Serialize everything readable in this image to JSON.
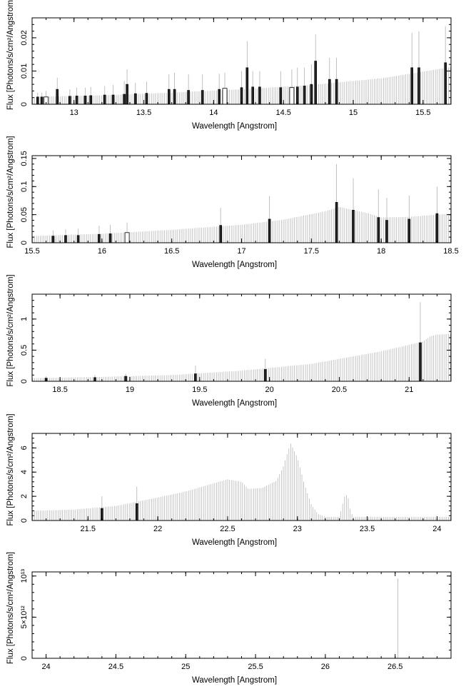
{
  "ylabel": "Flux [Photons/s/cm²/Angstrom]",
  "chart_data": [
    {
      "type": "bar",
      "xlabel": "Wavelength [Angstrom]",
      "ylabel": "Flux [Photons/s/cm²/Angstrom]",
      "xlim": [
        12.7,
        15.7
      ],
      "ylim": [
        0,
        0.026
      ],
      "xticks": [
        13,
        13.5,
        14,
        14.5,
        15,
        15.5
      ],
      "xtick_labels": [
        "13",
        "13.5",
        "14",
        "14.5",
        "15",
        "15.5"
      ],
      "yticks": [
        0,
        0.01,
        0.02
      ],
      "ytick_labels": [
        "0",
        "0.01",
        "0.02"
      ],
      "continuum": {
        "x": [
          12.7,
          13.2,
          13.7,
          14.2,
          14.7,
          15.2,
          15.7
        ],
        "y": [
          0.0022,
          0.0027,
          0.0035,
          0.0045,
          0.0058,
          0.0078,
          0.0112
        ]
      },
      "points": [
        {
          "x": 12.74,
          "y": 0.0022,
          "err": 0.0035,
          "hollow": false
        },
        {
          "x": 12.77,
          "y": 0.0022,
          "err": 0.0035,
          "hollow": false
        },
        {
          "x": 12.8,
          "y": 0.0022,
          "err": 0.004,
          "hollow": true
        },
        {
          "x": 12.88,
          "y": 0.0045,
          "err": 0.008,
          "hollow": false
        },
        {
          "x": 12.97,
          "y": 0.0024,
          "err": 0.0045,
          "hollow": false
        },
        {
          "x": 13.02,
          "y": 0.0025,
          "err": 0.005,
          "hollow": false
        },
        {
          "x": 13.08,
          "y": 0.0025,
          "err": 0.005,
          "hollow": false
        },
        {
          "x": 13.12,
          "y": 0.0026,
          "err": 0.0052,
          "hollow": false
        },
        {
          "x": 13.22,
          "y": 0.0028,
          "err": 0.0055,
          "hollow": false
        },
        {
          "x": 13.28,
          "y": 0.0028,
          "err": 0.0058,
          "hollow": false
        },
        {
          "x": 13.36,
          "y": 0.003,
          "err": 0.007,
          "hollow": false
        },
        {
          "x": 13.38,
          "y": 0.006,
          "err": 0.0105,
          "hollow": false
        },
        {
          "x": 13.44,
          "y": 0.0032,
          "err": 0.0065,
          "hollow": false
        },
        {
          "x": 13.52,
          "y": 0.0033,
          "err": 0.0068,
          "hollow": false
        },
        {
          "x": 13.68,
          "y": 0.0045,
          "err": 0.009,
          "hollow": false
        },
        {
          "x": 13.72,
          "y": 0.0045,
          "err": 0.0095,
          "hollow": false
        },
        {
          "x": 13.82,
          "y": 0.0042,
          "err": 0.009,
          "hollow": false
        },
        {
          "x": 13.92,
          "y": 0.0042,
          "err": 0.009,
          "hollow": false
        },
        {
          "x": 14.04,
          "y": 0.0045,
          "err": 0.0092,
          "hollow": false
        },
        {
          "x": 14.08,
          "y": 0.0048,
          "err": 0.0095,
          "hollow": true
        },
        {
          "x": 14.2,
          "y": 0.005,
          "err": 0.01,
          "hollow": false
        },
        {
          "x": 14.24,
          "y": 0.011,
          "err": 0.019,
          "hollow": false
        },
        {
          "x": 14.28,
          "y": 0.0052,
          "err": 0.01,
          "hollow": false
        },
        {
          "x": 14.33,
          "y": 0.0052,
          "err": 0.01,
          "hollow": false
        },
        {
          "x": 14.48,
          "y": 0.005,
          "err": 0.01,
          "hollow": false
        },
        {
          "x": 14.56,
          "y": 0.005,
          "err": 0.0105,
          "hollow": true
        },
        {
          "x": 14.6,
          "y": 0.0052,
          "err": 0.011,
          "hollow": false
        },
        {
          "x": 14.65,
          "y": 0.0055,
          "err": 0.011,
          "hollow": false
        },
        {
          "x": 14.7,
          "y": 0.006,
          "err": 0.012,
          "hollow": false
        },
        {
          "x": 14.73,
          "y": 0.013,
          "err": 0.021,
          "hollow": false
        },
        {
          "x": 14.83,
          "y": 0.0075,
          "err": 0.014,
          "hollow": false
        },
        {
          "x": 14.88,
          "y": 0.0075,
          "err": 0.014,
          "hollow": false
        },
        {
          "x": 15.42,
          "y": 0.011,
          "err": 0.0215,
          "hollow": false
        },
        {
          "x": 15.47,
          "y": 0.011,
          "err": 0.022,
          "hollow": false
        },
        {
          "x": 15.66,
          "y": 0.0125,
          "err": 0.0235,
          "hollow": false
        }
      ]
    },
    {
      "type": "bar",
      "xlabel": "Wavelength [Angstrom]",
      "ylabel": "Flux [Photons/s/cm²/Angstrom]",
      "xlim": [
        15.5,
        18.5
      ],
      "ylim": [
        0,
        0.155
      ],
      "xticks": [
        15.5,
        16,
        16.5,
        17,
        17.5,
        18,
        18.5
      ],
      "xtick_labels": [
        "15.5",
        "16",
        "16.5",
        "17",
        "17.5",
        "18",
        "18.5"
      ],
      "yticks": [
        0,
        0.05,
        0.1,
        0.15
      ],
      "ytick_labels": [
        "0",
        "0.05",
        "0.1",
        "0.15"
      ],
      "continuum": {
        "x": [
          15.5,
          16.0,
          16.5,
          17.0,
          17.3,
          17.6,
          17.7,
          17.8,
          17.9,
          18.0,
          18.2,
          18.5
        ],
        "y": [
          0.012,
          0.016,
          0.023,
          0.032,
          0.041,
          0.056,
          0.064,
          0.058,
          0.053,
          0.045,
          0.046,
          0.052
        ]
      },
      "points": [
        {
          "x": 15.65,
          "y": 0.012,
          "err": 0.022,
          "hollow": false
        },
        {
          "x": 15.74,
          "y": 0.013,
          "err": 0.024,
          "hollow": false
        },
        {
          "x": 15.83,
          "y": 0.013,
          "err": 0.025,
          "hollow": false
        },
        {
          "x": 15.98,
          "y": 0.015,
          "err": 0.03,
          "hollow": false
        },
        {
          "x": 16.06,
          "y": 0.016,
          "err": 0.032,
          "hollow": false
        },
        {
          "x": 16.18,
          "y": 0.018,
          "err": 0.036,
          "hollow": true
        },
        {
          "x": 16.85,
          "y": 0.031,
          "err": 0.062,
          "hollow": false
        },
        {
          "x": 17.2,
          "y": 0.042,
          "err": 0.083,
          "hollow": false
        },
        {
          "x": 17.68,
          "y": 0.072,
          "err": 0.14,
          "hollow": false
        },
        {
          "x": 17.8,
          "y": 0.058,
          "err": 0.115,
          "hollow": false
        },
        {
          "x": 17.98,
          "y": 0.045,
          "err": 0.095,
          "hollow": false
        },
        {
          "x": 18.04,
          "y": 0.04,
          "err": 0.08,
          "hollow": false
        },
        {
          "x": 18.2,
          "y": 0.042,
          "err": 0.084,
          "hollow": false
        },
        {
          "x": 18.4,
          "y": 0.052,
          "err": 0.1,
          "hollow": false
        }
      ]
    },
    {
      "type": "bar",
      "xlabel": "Wavelength [Angstrom]",
      "ylabel": "Flux [Photons/s/cm²/Angstrom]",
      "xlim": [
        18.3,
        21.3
      ],
      "ylim": [
        0,
        1.4
      ],
      "xticks": [
        18.5,
        19,
        19.5,
        20,
        20.5,
        21
      ],
      "xtick_labels": [
        "18.5",
        "19",
        "19.5",
        "20",
        "20.5",
        "21"
      ],
      "yticks": [
        0,
        0.5,
        1
      ],
      "ytick_labels": [
        "0",
        "0.5",
        "1"
      ],
      "continuum": {
        "x": [
          18.3,
          18.8,
          19.3,
          19.8,
          20.3,
          20.8,
          21.1,
          21.15,
          21.2,
          21.3
        ],
        "y": [
          0.05,
          0.07,
          0.1,
          0.17,
          0.28,
          0.48,
          0.64,
          0.72,
          0.75,
          0.76
        ]
      },
      "points": [
        {
          "x": 18.4,
          "y": 0.05,
          "err": 0.08,
          "hollow": false
        },
        {
          "x": 18.75,
          "y": 0.06,
          "err": 0.1,
          "hollow": false
        },
        {
          "x": 18.97,
          "y": 0.08,
          "err": 0.12,
          "hollow": false
        },
        {
          "x": 19.47,
          "y": 0.12,
          "err": 0.25,
          "hollow": false
        },
        {
          "x": 19.97,
          "y": 0.19,
          "err": 0.36,
          "hollow": false
        },
        {
          "x": 21.08,
          "y": 0.62,
          "err": 1.27,
          "hollow": false
        }
      ]
    },
    {
      "type": "bar",
      "xlabel": "Wavelength [Angstrom]",
      "ylabel": "Flux [Photons/s/cm²/Angstrom]",
      "xlim": [
        21.1,
        24.1
      ],
      "ylim": [
        0,
        7.2
      ],
      "xticks": [
        21.5,
        22,
        22.5,
        23,
        23.5,
        24
      ],
      "xtick_labels": [
        "21.5",
        "22",
        "22.5",
        "23",
        "23.5",
        "24"
      ],
      "yticks": [
        0,
        2,
        4,
        6
      ],
      "ytick_labels": [
        "0",
        "2",
        "4",
        "6"
      ],
      "continuum": {
        "x": [
          21.1,
          21.4,
          21.7,
          22.0,
          22.2,
          22.35,
          22.5,
          22.6,
          22.65,
          22.75,
          22.85,
          22.9,
          22.95,
          23.0,
          23.05,
          23.1,
          23.15,
          23.2,
          23.3,
          23.34,
          23.36,
          23.38,
          23.4,
          23.5,
          24.1
        ],
        "y": [
          0.8,
          0.9,
          1.2,
          1.9,
          2.4,
          2.9,
          3.4,
          3.2,
          2.6,
          2.7,
          3.3,
          4.5,
          6.4,
          5.2,
          3.0,
          1.3,
          0.5,
          0.3,
          0.3,
          2.1,
          2.1,
          0.8,
          0.3,
          0.3,
          0.3
        ]
      },
      "points": [
        {
          "x": 21.6,
          "y": 1.0,
          "err": 2.0,
          "hollow": false
        },
        {
          "x": 21.85,
          "y": 1.4,
          "err": 2.8,
          "hollow": false
        }
      ]
    },
    {
      "type": "bar",
      "xlabel": "Wavelength [Angstrom]",
      "ylabel": "Flux [Photons/s/cm²/Angstrom]",
      "xlim": [
        23.9,
        26.9
      ],
      "ylim": [
        0,
        10500000000000
      ],
      "xticks": [
        24,
        24.5,
        25,
        25.5,
        26,
        26.5
      ],
      "xtick_labels": [
        "24",
        "24.5",
        "25",
        "25.5",
        "26",
        "26.5"
      ],
      "yticks": [
        0,
        5000000000000,
        10000000000000
      ],
      "ytick_labels": [
        "0",
        "5×10¹²",
        "10¹³"
      ],
      "continuum": {
        "x": [
          23.9,
          26.9
        ],
        "y": [
          0,
          0
        ]
      },
      "spike": {
        "x": 26.52,
        "y": 9700000000000
      },
      "points": []
    }
  ]
}
